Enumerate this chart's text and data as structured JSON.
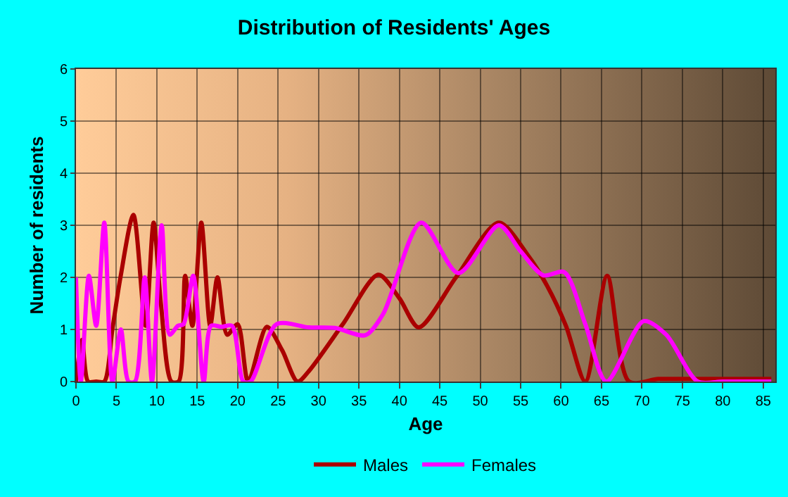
{
  "chart_data": {
    "type": "line",
    "title": "Distribution of Residents' Ages",
    "xlabel": "Age",
    "ylabel": "Number of residents",
    "series": [
      {
        "name": "Males",
        "color": "#aa0000",
        "x": [
          0,
          0.75,
          1.5,
          2.5,
          3.5,
          4.5,
          5.5,
          7.1,
          8.6,
          9.6,
          10.5,
          11.8,
          12.7,
          13.5,
          14.4,
          15.5,
          16.6,
          17.5,
          18.7,
          20,
          21.3,
          23.6,
          25.5,
          27.4,
          28.8,
          33,
          37.4,
          40,
          42.4,
          47,
          52.3,
          56,
          58.3,
          60.6,
          63,
          65.7,
          68.4,
          72,
          75,
          80,
          86
        ],
        "values": [
          0,
          0.8,
          0,
          0,
          0,
          1,
          2,
          3.2,
          1.07,
          3.05,
          1.5,
          0,
          0,
          2.03,
          1.07,
          3.05,
          1.07,
          2,
          0.9,
          1.1,
          0,
          1.05,
          0.6,
          0,
          0.2,
          1.1,
          2.05,
          1.6,
          1.04,
          2,
          3.05,
          2.4,
          1.83,
          1.07,
          0,
          2.03,
          0,
          0.05,
          0.05,
          0.05,
          0.05
        ]
      },
      {
        "name": "Females",
        "color": "#ff00ff",
        "x": [
          0,
          0.6,
          1.6,
          2.5,
          3.5,
          4.5,
          5.55,
          6.5,
          7.3,
          8.5,
          9.4,
          10.6,
          11.6,
          12.6,
          13.3,
          14.5,
          15.8,
          16.7,
          18,
          19.3,
          20.7,
          21.6,
          24.8,
          28.8,
          32,
          35.8,
          38,
          42.7,
          47.3,
          52.3,
          55,
          57.8,
          60.4,
          63,
          65.6,
          70.2,
          73,
          76.9,
          80,
          86
        ],
        "values": [
          2,
          0,
          2.03,
          1.07,
          3.05,
          0,
          1,
          0,
          0,
          2,
          0,
          3,
          0.9,
          1.07,
          1.1,
          2.03,
          0,
          1.07,
          1.05,
          1.07,
          0,
          0,
          1.1,
          1.04,
          1.03,
          0.89,
          1.3,
          3.05,
          2.08,
          3,
          2.5,
          2.04,
          2.1,
          1.1,
          0,
          1.16,
          0.9,
          0,
          0,
          0
        ]
      }
    ],
    "xlim": [
      0,
      86.5
    ],
    "xticks": [
      0,
      5,
      10,
      15,
      20,
      25,
      30,
      35,
      40,
      45,
      50,
      55,
      60,
      65,
      70,
      75,
      80,
      85
    ],
    "ylim": [
      0,
      6
    ],
    "yticks": [
      0,
      1,
      2,
      3,
      4,
      5,
      6
    ],
    "grid": true,
    "legend": "bottom",
    "marker": "none",
    "line_style": "solid"
  }
}
